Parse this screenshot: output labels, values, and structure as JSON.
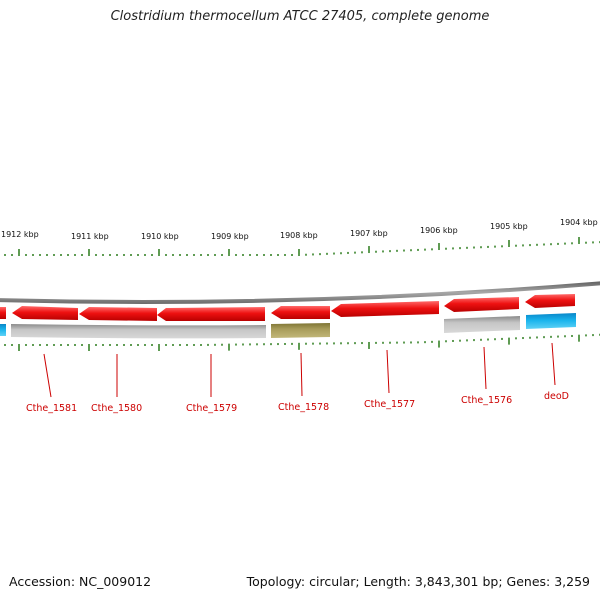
{
  "title": "Clostridium thermocellum ATCC 27405, complete genome",
  "footer": {
    "accession": "Accession: NC_009012",
    "stats": "Topology: circular; Length: 3,843,301 bp; Genes: 3,259"
  },
  "scale_labels": [
    "1912 kbp",
    "1911 kbp",
    "1910 kbp",
    "1909 kbp",
    "1908 kbp",
    "1907 kbp",
    "1906 kbp",
    "1905 kbp",
    "1904 kbp"
  ],
  "gene_labels": [
    "Cthe_1581",
    "Cthe_1580",
    "Cthe_1579",
    "Cthe_1578",
    "Cthe_1577",
    "Cthe_1576",
    "deoD"
  ],
  "colors": {
    "cds_arrow": "#ee1111",
    "backbone": "#808080",
    "feature_grey": "#b8b8b8",
    "feature_olive": "#a89c5a",
    "feature_blue": "#19b4ec",
    "tick": "#2a7a1a",
    "gene_label": "#cc0000",
    "leader": "#cc0000"
  }
}
